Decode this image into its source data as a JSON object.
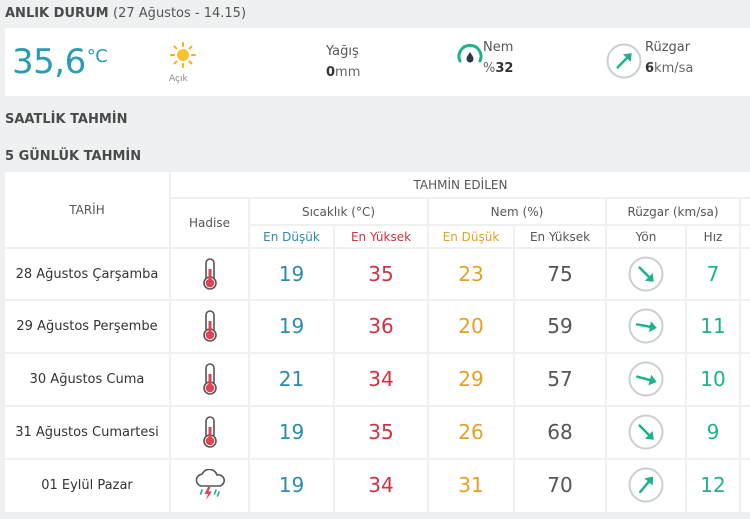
{
  "current": {
    "title": "ANLIK DURUM",
    "datetime": "(27 Ağustos - 14.15)",
    "temperature": "35,6",
    "temperature_unit": "°C",
    "condition": "Açık",
    "precip_label": "Yağış",
    "precip_value": "0",
    "precip_unit": "mm",
    "humidity_label": "Nem",
    "humidity_prefix": "%",
    "humidity_value": "32",
    "wind_label": "Rüzgar",
    "wind_value": "6",
    "wind_unit": "km/sa",
    "icons": {
      "condition": "sun-icon",
      "humidity": "humidity-gauge-icon",
      "wind": "wind-direction-icon"
    }
  },
  "hourly_title": "SAATLİK TAHMİN",
  "five_day_title": "5 GÜNLÜK TAHMİN",
  "table": {
    "header": {
      "date": "TARİH",
      "forecast_group": "TAHMİN EDİLEN",
      "phenomenon": "Hadise",
      "temp_group": "Sıcaklık (°C)",
      "humidity_group": "Nem (%)",
      "wind_group": "Rüzgar (km/sa)",
      "temp_min": "En Düşük",
      "temp_max": "En Yüksek",
      "hum_min": "En Düşük",
      "hum_max": "En Yüksek",
      "wind_dir": "Yön",
      "wind_speed": "Hız"
    },
    "rows": [
      {
        "date": "28 Ağustos Çarşamba",
        "icon": "thermometer-icon",
        "temp_min": "19",
        "temp_max": "35",
        "hum_min": "23",
        "hum_max": "75",
        "wind_dir_icon": "arrow-southeast-icon",
        "wind_deg": 135,
        "wind_speed": "7"
      },
      {
        "date": "29 Ağustos Perşembe",
        "icon": "thermometer-icon",
        "temp_min": "19",
        "temp_max": "36",
        "hum_min": "20",
        "hum_max": "59",
        "wind_dir_icon": "arrow-east-icon",
        "wind_deg": 100,
        "wind_speed": "11"
      },
      {
        "date": "30 Ağustos Cuma",
        "icon": "thermometer-icon",
        "temp_min": "21",
        "temp_max": "34",
        "hum_min": "29",
        "hum_max": "57",
        "wind_dir_icon": "arrow-east-icon",
        "wind_deg": 105,
        "wind_speed": "10"
      },
      {
        "date": "31 Ağustos Cumartesi",
        "icon": "thermometer-icon",
        "temp_min": "19",
        "temp_max": "35",
        "hum_min": "26",
        "hum_max": "68",
        "wind_dir_icon": "arrow-southeast-icon",
        "wind_deg": 135,
        "wind_speed": "9"
      },
      {
        "date": "01 Eylül Pazar",
        "icon": "thunderstorm-icon",
        "temp_min": "19",
        "temp_max": "34",
        "hum_min": "31",
        "hum_max": "70",
        "wind_dir_icon": "arrow-northeast-icon",
        "wind_deg": 40,
        "wind_speed": "12"
      }
    ]
  },
  "colors": {
    "accent": "#2a9bb4",
    "min_temp": "#2a8bb0",
    "max_temp": "#d0323e",
    "min_hum": "#e6a023",
    "wind": "#1db28e"
  }
}
